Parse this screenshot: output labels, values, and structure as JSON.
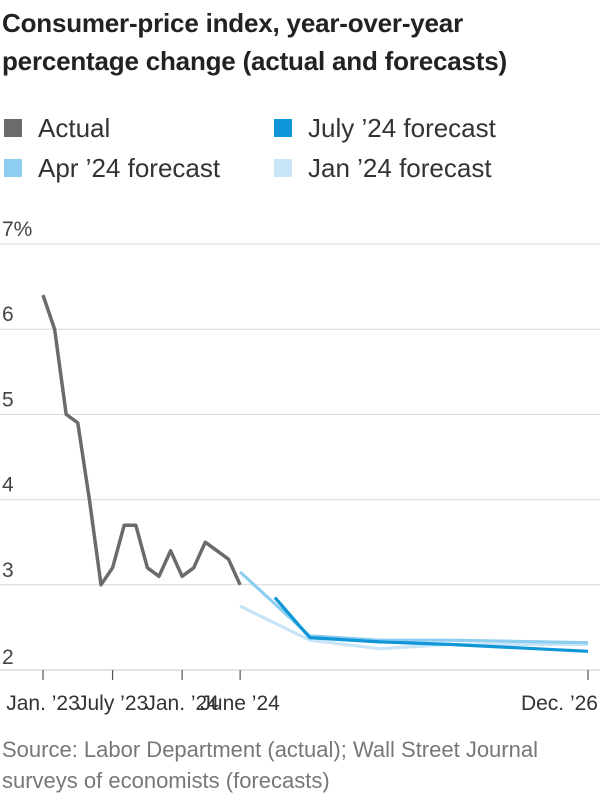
{
  "title": "Consumer-price index, year-over-year percentage change (actual and forecasts)",
  "legend": [
    {
      "label": "Actual",
      "color": "#6b6b6b",
      "series": "Actual"
    },
    {
      "label": "July ’24 forecast",
      "color": "#0f96d8",
      "series": "July ’24 forecast"
    },
    {
      "label": "Apr ’24 forecast",
      "color": "#8ccdf0",
      "series": "Apr ’24 forecast"
    },
    {
      "label": "Jan ’24 forecast",
      "color": "#c7e5f7",
      "series": "Jan ’24 forecast"
    }
  ],
  "source": "Source: Labor Department (actual); Wall Street Journal surveys of economists (forecasts)",
  "chart_data": {
    "type": "line",
    "title": "Consumer-price index, year-over-year percentage change (actual and forecasts)",
    "xlabel": "",
    "ylabel": "",
    "ylim": [
      2,
      7
    ],
    "xlim": [
      "2023-01",
      "2026-12"
    ],
    "grid": true,
    "legend_position": "top",
    "y_ticks": [
      {
        "value": 7,
        "label": "7%"
      },
      {
        "value": 6,
        "label": "6"
      },
      {
        "value": 5,
        "label": "5"
      },
      {
        "value": 4,
        "label": "4"
      },
      {
        "value": 3,
        "label": "3"
      },
      {
        "value": 2,
        "label": "2"
      }
    ],
    "x_ticks": [
      {
        "value": "2023-01",
        "label": "Jan. ’23"
      },
      {
        "value": "2023-07",
        "label": "July ’23"
      },
      {
        "value": "2024-01",
        "label": "Jan. ’24"
      },
      {
        "value": "2024-06",
        "label": "June ’24"
      },
      {
        "value": "2026-12",
        "label": "Dec. ’26"
      }
    ],
    "series": [
      {
        "name": "Jan ’24 forecast",
        "color": "#c7e5f7",
        "points": [
          {
            "x": "2024-06",
            "y": 2.75
          },
          {
            "x": "2024-12",
            "y": 2.35
          },
          {
            "x": "2025-06",
            "y": 2.25
          },
          {
            "x": "2025-12",
            "y": 2.3
          },
          {
            "x": "2026-12",
            "y": 2.3
          }
        ]
      },
      {
        "name": "Apr ’24 forecast",
        "color": "#8ccdf0",
        "points": [
          {
            "x": "2024-06",
            "y": 3.15
          },
          {
            "x": "2024-12",
            "y": 2.4
          },
          {
            "x": "2025-06",
            "y": 2.35
          },
          {
            "x": "2025-12",
            "y": 2.35
          },
          {
            "x": "2026-12",
            "y": 2.32
          }
        ]
      },
      {
        "name": "July ’24 forecast",
        "color": "#0f96d8",
        "points": [
          {
            "x": "2024-09",
            "y": 2.85
          },
          {
            "x": "2024-12",
            "y": 2.38
          },
          {
            "x": "2025-06",
            "y": 2.33
          },
          {
            "x": "2025-12",
            "y": 2.3
          },
          {
            "x": "2026-12",
            "y": 2.22
          }
        ]
      },
      {
        "name": "Actual",
        "color": "#6b6b6b",
        "points": [
          {
            "x": "2023-01",
            "y": 6.4
          },
          {
            "x": "2023-02",
            "y": 6.0
          },
          {
            "x": "2023-03",
            "y": 5.0
          },
          {
            "x": "2023-04",
            "y": 4.9
          },
          {
            "x": "2023-05",
            "y": 4.0
          },
          {
            "x": "2023-06",
            "y": 3.0
          },
          {
            "x": "2023-07",
            "y": 3.2
          },
          {
            "x": "2023-08",
            "y": 3.7
          },
          {
            "x": "2023-09",
            "y": 3.7
          },
          {
            "x": "2023-10",
            "y": 3.2
          },
          {
            "x": "2023-11",
            "y": 3.1
          },
          {
            "x": "2023-12",
            "y": 3.4
          },
          {
            "x": "2024-01",
            "y": 3.1
          },
          {
            "x": "2024-02",
            "y": 3.2
          },
          {
            "x": "2024-03",
            "y": 3.5
          },
          {
            "x": "2024-04",
            "y": 3.4
          },
          {
            "x": "2024-05",
            "y": 3.3
          },
          {
            "x": "2024-06",
            "y": 3.0
          }
        ]
      }
    ]
  }
}
